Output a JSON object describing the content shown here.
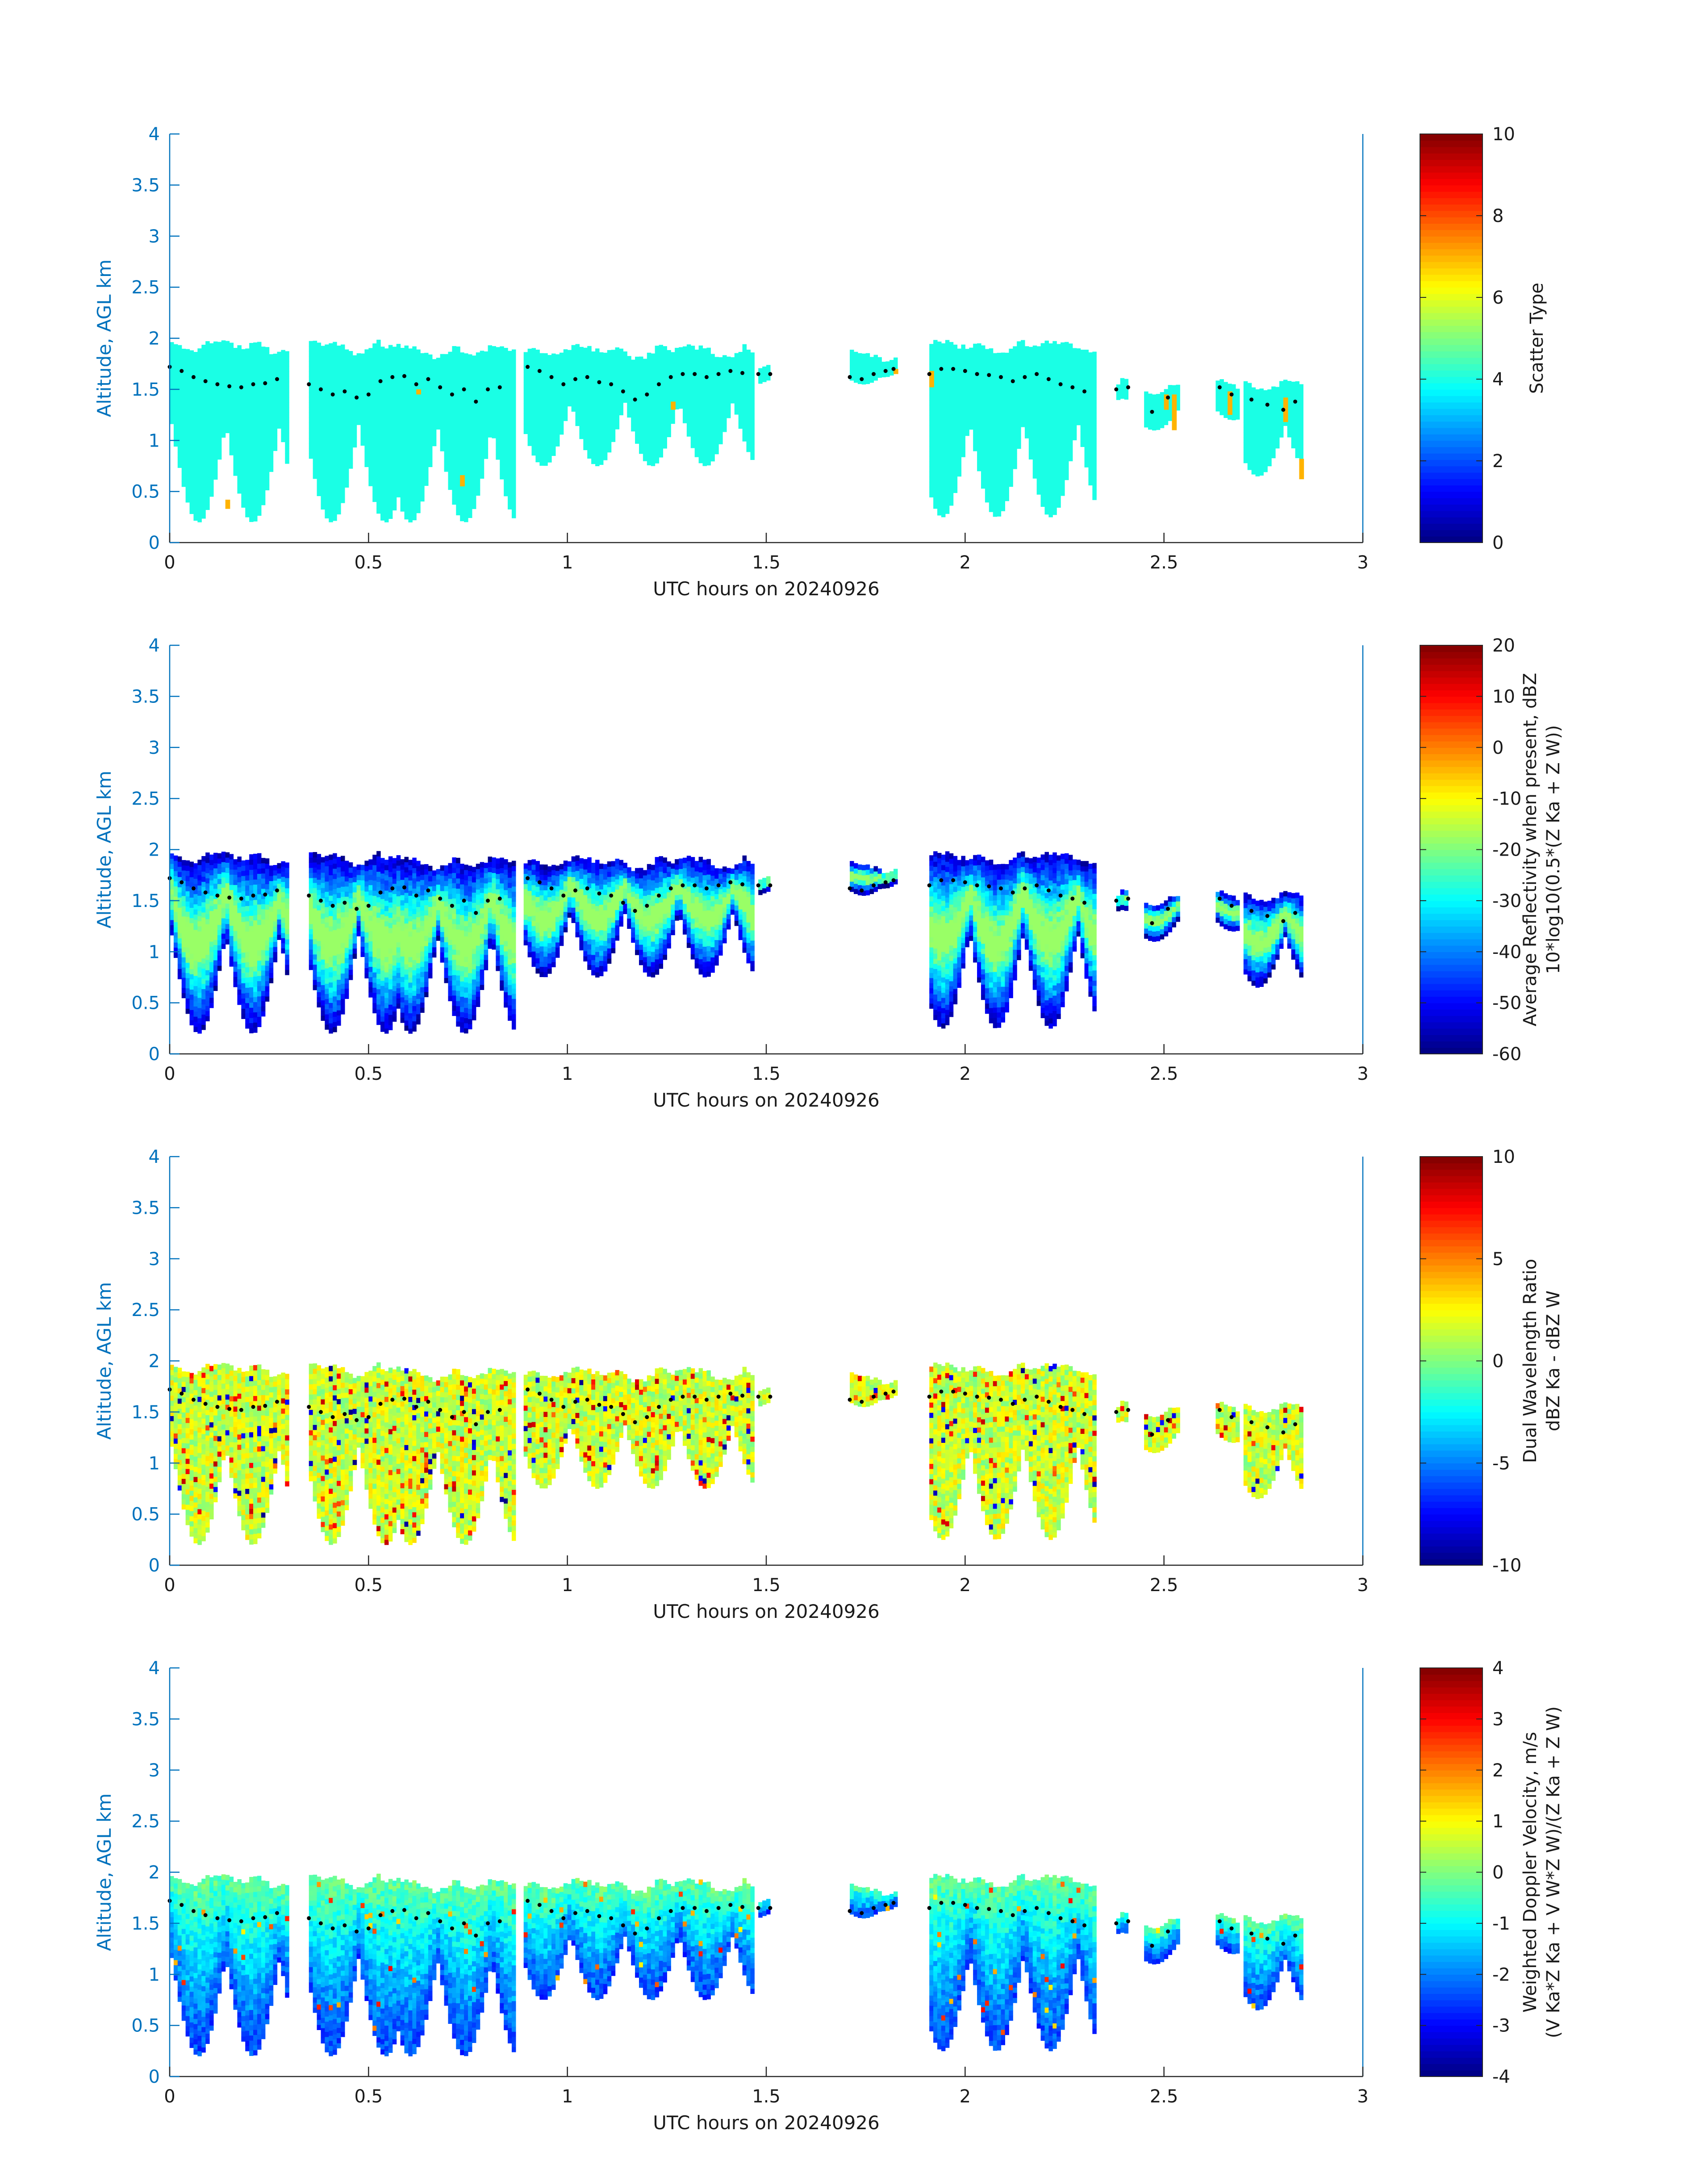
{
  "figure": {
    "x_axis_label": "UTC hours on 20240926",
    "y_axis_label": "Altitude, AGL km",
    "x_ticks": [
      "0",
      "0.5",
      "1",
      "1.5",
      "2",
      "2.5",
      "3"
    ],
    "y_ticks": [
      "0",
      "0.5",
      "1",
      "1.5",
      "2",
      "2.5",
      "3",
      "3.5",
      "4"
    ],
    "axis_color": "#0072bd",
    "background_color": "#ffffff"
  },
  "chart_data": [
    {
      "type": "heatmap",
      "title": "",
      "xlabel": "UTC hours on 20240926",
      "ylabel": "Altitude, AGL km",
      "xlim": [
        0,
        3
      ],
      "ylim": [
        0,
        4
      ],
      "colormap": "jet",
      "colorbar": {
        "label": [
          "Scatter Type"
        ],
        "clim": [
          0,
          10
        ],
        "ticks": [
          "0",
          "2",
          "4",
          "6",
          "8",
          "10"
        ]
      },
      "field": "scatter",
      "values_present": [
        4,
        7
      ],
      "cloud_top_marker_color": "#000000"
    },
    {
      "type": "heatmap",
      "title": "",
      "xlabel": "UTC hours on 20240926",
      "ylabel": "Altitude, AGL km",
      "xlim": [
        0,
        3
      ],
      "ylim": [
        0,
        4
      ],
      "colormap": "jet",
      "colorbar": {
        "label": [
          "Average Reflectivity when present, dBZ",
          "10*log10(0.5*(Z_Ka + Z_W))"
        ],
        "clim": [
          -60,
          20
        ],
        "ticks": [
          "-60",
          "-50",
          "-40",
          "-30",
          "-20",
          "-10",
          "0",
          "10",
          "20"
        ]
      },
      "field": "reflectivity",
      "cloud_top_marker_color": "#000000"
    },
    {
      "type": "heatmap",
      "title": "",
      "xlabel": "UTC hours on 20240926",
      "ylabel": "Altitude, AGL km",
      "xlim": [
        0,
        3
      ],
      "ylim": [
        0,
        4
      ],
      "colormap": "jet",
      "colorbar": {
        "label": [
          "Dual Wavelength Ratio",
          "dBZ_Ka - dBZ_W"
        ],
        "clim": [
          -10,
          10
        ],
        "ticks": [
          "-10",
          "-5",
          "0",
          "5",
          "10"
        ]
      },
      "field": "dwr",
      "cloud_top_marker_color": "#000000"
    },
    {
      "type": "heatmap",
      "title": "",
      "xlabel": "UTC hours on 20240926",
      "ylabel": "Altitude, AGL km",
      "xlim": [
        0,
        3
      ],
      "ylim": [
        0,
        4
      ],
      "colormap": "jet",
      "colorbar": {
        "label": [
          "Weighted Doppler Velocity, m/s",
          "(V_Ka*Z_Ka + V_W*Z_W)/(Z_Ka + Z_W)"
        ],
        "clim": [
          -4,
          4
        ],
        "ticks": [
          "-4",
          "-3",
          "-2",
          "-1",
          "0",
          "1",
          "2",
          "3",
          "4"
        ]
      },
      "field": "velocity",
      "cloud_top_marker_color": "#000000"
    }
  ],
  "cloud_columns": [
    {
      "t0": 0.0,
      "t1": 0.3,
      "top": 1.95,
      "base": 0.2,
      "field": "bulk"
    },
    {
      "t0": 0.35,
      "t1": 0.58,
      "top": 1.95,
      "base": 0.2,
      "field": "bulk"
    },
    {
      "t0": 0.58,
      "t1": 0.87,
      "top": 1.9,
      "base": 0.2,
      "field": "bulk"
    },
    {
      "t0": 0.89,
      "t1": 1.47,
      "top": 1.9,
      "base": 0.75,
      "field": "bulk"
    },
    {
      "t0": 1.48,
      "t1": 1.51,
      "top": 1.75,
      "base": 1.55,
      "field": "bulk"
    },
    {
      "t0": 1.71,
      "t1": 1.83,
      "top": 1.85,
      "base": 1.55,
      "field": "bulk"
    },
    {
      "t0": 1.91,
      "t1": 2.33,
      "top": 1.95,
      "base": 0.25,
      "field": "bulk"
    },
    {
      "t0": 2.38,
      "t1": 2.41,
      "top": 1.6,
      "base": 1.4,
      "field": "bulk"
    },
    {
      "t0": 2.45,
      "t1": 2.54,
      "top": 1.55,
      "base": 1.1,
      "field": "bulk"
    },
    {
      "t0": 2.63,
      "t1": 2.69,
      "top": 1.6,
      "base": 1.2,
      "field": "bulk"
    },
    {
      "t0": 2.7,
      "t1": 2.85,
      "top": 1.55,
      "base": 0.65,
      "field": "bulk"
    }
  ],
  "cloud_top_markers": [
    [
      0.0,
      1.72
    ],
    [
      0.03,
      1.68
    ],
    [
      0.06,
      1.62
    ],
    [
      0.09,
      1.58
    ],
    [
      0.12,
      1.55
    ],
    [
      0.15,
      1.53
    ],
    [
      0.18,
      1.52
    ],
    [
      0.21,
      1.55
    ],
    [
      0.24,
      1.56
    ],
    [
      0.27,
      1.6
    ],
    [
      0.35,
      1.55
    ],
    [
      0.38,
      1.5
    ],
    [
      0.41,
      1.45
    ],
    [
      0.44,
      1.48
    ],
    [
      0.47,
      1.42
    ],
    [
      0.5,
      1.45
    ],
    [
      0.53,
      1.58
    ],
    [
      0.56,
      1.62
    ],
    [
      0.59,
      1.63
    ],
    [
      0.62,
      1.55
    ],
    [
      0.65,
      1.6
    ],
    [
      0.68,
      1.52
    ],
    [
      0.71,
      1.45
    ],
    [
      0.74,
      1.5
    ],
    [
      0.77,
      1.38
    ],
    [
      0.8,
      1.5
    ],
    [
      0.83,
      1.52
    ],
    [
      0.9,
      1.72
    ],
    [
      0.93,
      1.68
    ],
    [
      0.96,
      1.62
    ],
    [
      0.99,
      1.55
    ],
    [
      1.02,
      1.6
    ],
    [
      1.05,
      1.62
    ],
    [
      1.08,
      1.57
    ],
    [
      1.11,
      1.55
    ],
    [
      1.14,
      1.48
    ],
    [
      1.17,
      1.4
    ],
    [
      1.2,
      1.45
    ],
    [
      1.23,
      1.55
    ],
    [
      1.26,
      1.62
    ],
    [
      1.29,
      1.65
    ],
    [
      1.32,
      1.65
    ],
    [
      1.35,
      1.62
    ],
    [
      1.38,
      1.65
    ],
    [
      1.41,
      1.68
    ],
    [
      1.44,
      1.66
    ],
    [
      1.48,
      1.65
    ],
    [
      1.51,
      1.65
    ],
    [
      1.71,
      1.62
    ],
    [
      1.74,
      1.6
    ],
    [
      1.77,
      1.65
    ],
    [
      1.8,
      1.68
    ],
    [
      1.82,
      1.7
    ],
    [
      1.91,
      1.65
    ],
    [
      1.94,
      1.7
    ],
    [
      1.97,
      1.7
    ],
    [
      2.0,
      1.68
    ],
    [
      2.03,
      1.65
    ],
    [
      2.06,
      1.64
    ],
    [
      2.09,
      1.62
    ],
    [
      2.12,
      1.58
    ],
    [
      2.15,
      1.62
    ],
    [
      2.18,
      1.65
    ],
    [
      2.21,
      1.6
    ],
    [
      2.24,
      1.55
    ],
    [
      2.27,
      1.52
    ],
    [
      2.3,
      1.48
    ],
    [
      2.38,
      1.5
    ],
    [
      2.41,
      1.52
    ],
    [
      2.47,
      1.28
    ],
    [
      2.51,
      1.42
    ],
    [
      2.64,
      1.52
    ],
    [
      2.67,
      1.45
    ],
    [
      2.72,
      1.4
    ],
    [
      2.76,
      1.35
    ],
    [
      2.8,
      1.3
    ],
    [
      2.83,
      1.38
    ]
  ],
  "scatter_type_highlights": [
    {
      "t": 0.14,
      "z0": 0.33,
      "z1": 0.42,
      "value": 7
    },
    {
      "t": 0.62,
      "z0": 1.45,
      "z1": 1.5,
      "value": 7
    },
    {
      "t": 0.73,
      "z0": 0.55,
      "z1": 0.66,
      "value": 7
    },
    {
      "t": 1.26,
      "z0": 1.3,
      "z1": 1.38,
      "value": 7
    },
    {
      "t": 1.82,
      "z0": 1.65,
      "z1": 1.7,
      "value": 7
    },
    {
      "t": 1.91,
      "z0": 1.52,
      "z1": 1.68,
      "value": 7
    },
    {
      "t": 2.5,
      "z0": 1.3,
      "z1": 1.45,
      "value": 7
    },
    {
      "t": 2.52,
      "z0": 1.1,
      "z1": 1.45,
      "value": 7
    },
    {
      "t": 2.66,
      "z0": 1.25,
      "z1": 1.48,
      "value": 7
    },
    {
      "t": 2.8,
      "z0": 1.18,
      "z1": 1.42,
      "value": 7
    },
    {
      "t": 2.84,
      "z0": 0.62,
      "z1": 0.82,
      "value": 7
    }
  ]
}
